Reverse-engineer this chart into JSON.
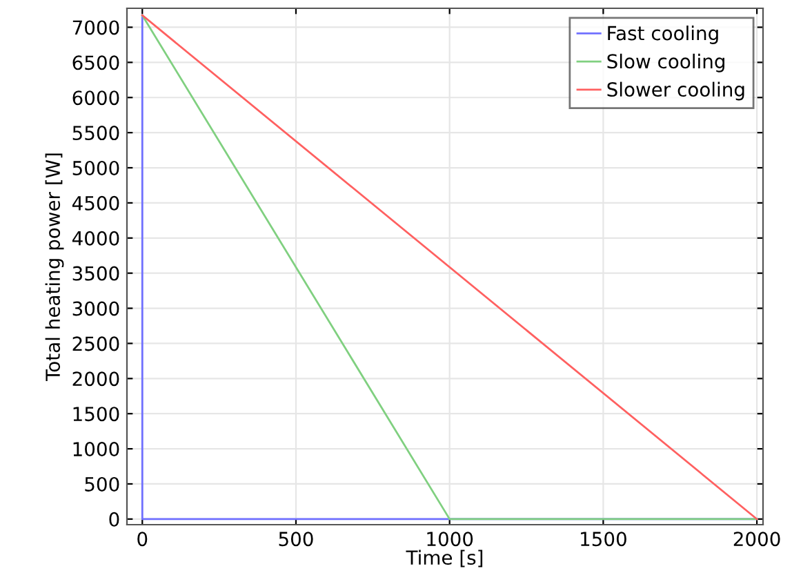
{
  "chart_data": {
    "type": "line",
    "xlabel": "Time [s]",
    "ylabel": "Total heating power [W]",
    "series": [
      {
        "name": "Fast cooling",
        "color": "#7070ff",
        "x": [
          0,
          0,
          2000
        ],
        "values": [
          7170,
          0,
          0
        ]
      },
      {
        "name": "Slow cooling",
        "color": "#80d080",
        "x": [
          0,
          1000,
          2000
        ],
        "values": [
          7170,
          0,
          0
        ]
      },
      {
        "name": "Slower cooling",
        "color": "#ff6060",
        "x": [
          0,
          2000
        ],
        "values": [
          7170,
          0
        ]
      }
    ],
    "xlim": [
      -50,
      2020
    ],
    "xticks": [
      0,
      500,
      1000,
      1500,
      2000
    ],
    "ylim": [
      -80,
      7270
    ],
    "yticks": [
      0,
      500,
      1000,
      1500,
      2000,
      2500,
      3000,
      3500,
      4000,
      4500,
      5000,
      5500,
      6000,
      6500,
      7000
    ],
    "grid": true,
    "legend": "top right",
    "marker": "none",
    "line_style": "solid"
  }
}
